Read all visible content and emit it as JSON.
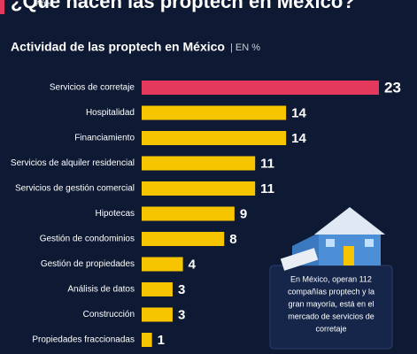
{
  "watermark": "After",
  "chart_data": {
    "type": "bar",
    "orientation": "horizontal",
    "title": "¿Qué hacen las proptech en México?",
    "subtitle": "Actividad de las proptech en México",
    "unit_label": "| EN %",
    "categories": [
      "Servicios de corretaje",
      "Hospitalidad",
      "Financiamiento",
      "Servicios de alquiler residencial",
      "Servicios de gestión comercial",
      "Hipotecas",
      "Gestión de condominios",
      "Gestión de propiedades",
      "Análisis de datos",
      "Construcción",
      "Propiedades fraccionadas"
    ],
    "values": [
      23,
      14,
      14,
      11,
      11,
      9,
      8,
      4,
      3,
      3,
      1
    ],
    "colors": [
      "#e4385c",
      "#f6c500",
      "#f6c500",
      "#f6c500",
      "#f6c500",
      "#f6c500",
      "#f6c500",
      "#f6c500",
      "#f6c500",
      "#f6c500",
      "#f6c500"
    ],
    "annotation": [
      "En México, operan 112",
      "compañías proptech y la",
      "gran mayoría, está en el",
      "mercado de servicios de",
      "corretaje"
    ]
  }
}
